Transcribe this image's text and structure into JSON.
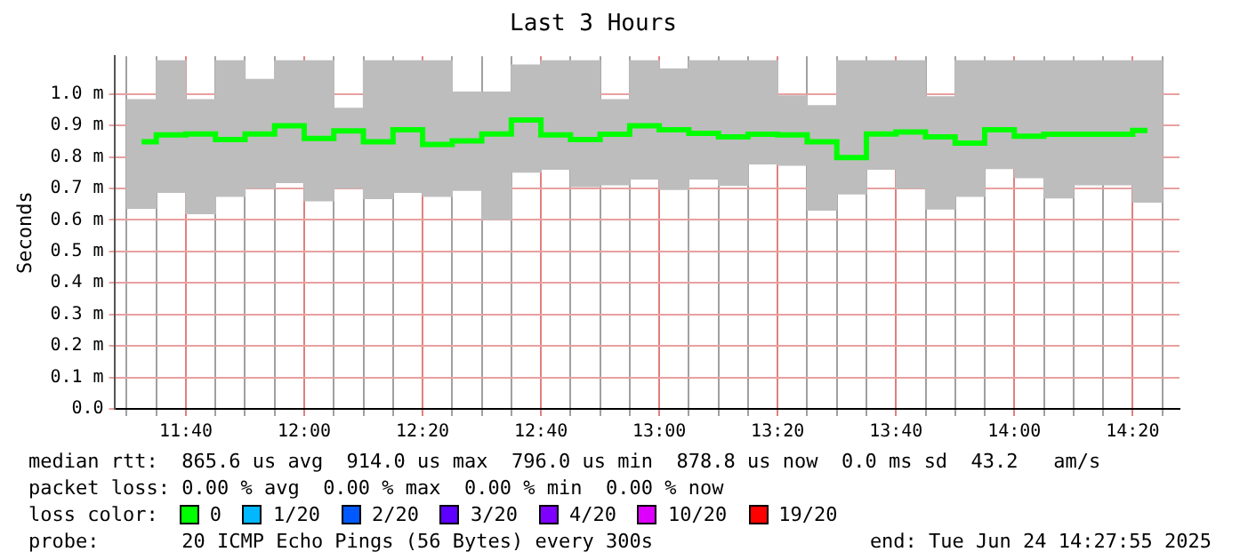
{
  "chart_data": {
    "type": "step",
    "title": "Last 3 Hours",
    "ylabel": "Seconds",
    "legend_title": "loss color:",
    "legend": "bottom",
    "grid": true,
    "x": [
      11.5417,
      11.625,
      11.7083,
      11.7917,
      11.875,
      11.9583,
      12.0417,
      12.125,
      12.2083,
      12.2917,
      12.375,
      12.4583,
      12.5417,
      12.625,
      12.7083,
      12.7917,
      12.875,
      12.9583,
      13.0417,
      13.125,
      13.2083,
      13.2917,
      13.375,
      13.4583,
      13.5417,
      13.625,
      13.7083,
      13.7917,
      13.875,
      13.9583,
      14.0417,
      14.125,
      14.2083,
      14.2917,
      14.375
    ],
    "xlim": [
      11.4653,
      14.4653
    ],
    "xticks": [
      {
        "value": 11.5,
        "label": null
      },
      {
        "value": 11.5833,
        "label": null
      },
      {
        "value": 11.6667,
        "label": "11:40"
      },
      {
        "value": 11.75,
        "label": null
      },
      {
        "value": 11.8333,
        "label": null
      },
      {
        "value": 11.9167,
        "label": null
      },
      {
        "value": 12,
        "label": "12:00"
      },
      {
        "value": 12.0833,
        "label": null
      },
      {
        "value": 12.1667,
        "label": null
      },
      {
        "value": 12.25,
        "label": null
      },
      {
        "value": 12.3333,
        "label": "12:20"
      },
      {
        "value": 12.4167,
        "label": null
      },
      {
        "value": 12.5,
        "label": null
      },
      {
        "value": 12.5833,
        "label": null
      },
      {
        "value": 12.6667,
        "label": "12:40"
      },
      {
        "value": 12.75,
        "label": null
      },
      {
        "value": 12.8333,
        "label": null
      },
      {
        "value": 12.9167,
        "label": null
      },
      {
        "value": 13,
        "label": "13:00"
      },
      {
        "value": 13.0833,
        "label": null
      },
      {
        "value": 13.1667,
        "label": null
      },
      {
        "value": 13.25,
        "label": null
      },
      {
        "value": 13.3333,
        "label": "13:20"
      },
      {
        "value": 13.4167,
        "label": null
      },
      {
        "value": 13.5,
        "label": null
      },
      {
        "value": 13.5833,
        "label": null
      },
      {
        "value": 13.6667,
        "label": "13:40"
      },
      {
        "value": 13.75,
        "label": null
      },
      {
        "value": 13.8333,
        "label": null
      },
      {
        "value": 13.9167,
        "label": null
      },
      {
        "value": 14,
        "label": "14:00"
      },
      {
        "value": 14.0833,
        "label": null
      },
      {
        "value": 14.1667,
        "label": null
      },
      {
        "value": 14.25,
        "label": null
      },
      {
        "value": 14.3333,
        "label": "14:20"
      },
      {
        "value": 14.4167,
        "label": null
      }
    ],
    "ylim": [
      0,
      1.12
    ],
    "yticks": [
      {
        "value": 0,
        "label": "0.0"
      },
      {
        "value": 0.1,
        "label": "0.1 m"
      },
      {
        "value": 0.2,
        "label": "0.2 m"
      },
      {
        "value": 0.3,
        "label": "0.3 m"
      },
      {
        "value": 0.4,
        "label": "0.4 m"
      },
      {
        "value": 0.5,
        "label": "0.5 m"
      },
      {
        "value": 0.6,
        "label": "0.6 m"
      },
      {
        "value": 0.7,
        "label": "0.7 m"
      },
      {
        "value": 0.8,
        "label": "0.8 m"
      },
      {
        "value": 0.9,
        "label": "0.9 m"
      },
      {
        "value": 1.0,
        "label": "1.0 m"
      }
    ],
    "series": [
      {
        "type": "bar",
        "color": "#bdbdbd",
        "base": [
          0.637,
          0.688,
          0.62,
          0.675,
          0.701,
          0.719,
          0.661,
          0.701,
          0.668,
          0.688,
          0.675,
          0.694,
          0.602,
          0.752,
          0.761,
          0.706,
          0.712,
          0.73,
          0.697,
          0.73,
          0.71,
          0.778,
          0.774,
          0.631,
          0.683,
          0.761,
          0.701,
          0.635,
          0.675,
          0.763,
          0.734,
          0.67,
          0.712,
          0.712,
          0.657
        ],
        "values": [
          0.345,
          0.417,
          0.362,
          0.43,
          0.345,
          0.386,
          0.444,
          0.253,
          0.437,
          0.417,
          0.43,
          0.312,
          0.404,
          0.34,
          0.344,
          0.399,
          0.27,
          0.375,
          0.382,
          0.375,
          0.395,
          0.327,
          0.22,
          0.332,
          0.422,
          0.344,
          0.404,
          0.356,
          0.43,
          0.342,
          0.371,
          0.435,
          0.393,
          0.393,
          0.448
        ]
      },
      {
        "name": "0",
        "color": "#00ff00",
        "values": [
          0.848,
          0.87,
          0.873,
          0.855,
          0.873,
          0.899,
          0.859,
          0.883,
          0.848,
          0.886,
          0.84,
          0.851,
          0.873,
          0.917,
          0.87,
          0.855,
          0.872,
          0.899,
          0.886,
          0.875,
          0.864,
          0.872,
          0.87,
          0.848,
          0.798,
          0.873,
          0.879,
          0.864,
          0.844,
          0.886,
          0.866,
          0.872,
          0.872,
          0.872,
          0.884
        ]
      },
      {
        "name": "1/20",
        "color": "#00b8ff",
        "values": [
          null,
          null,
          null,
          null,
          null,
          null,
          null,
          null,
          null,
          null,
          null,
          null,
          null,
          null,
          null,
          null,
          null,
          null,
          null,
          null,
          null,
          null,
          null,
          null,
          null,
          null,
          null,
          null,
          null,
          null,
          null,
          null,
          null,
          null,
          null
        ]
      },
      {
        "name": "2/20",
        "color": "#0059ff",
        "values": [
          null,
          null,
          null,
          null,
          null,
          null,
          null,
          null,
          null,
          null,
          null,
          null,
          null,
          null,
          null,
          null,
          null,
          null,
          null,
          null,
          null,
          null,
          null,
          null,
          null,
          null,
          null,
          null,
          null,
          null,
          null,
          null,
          null,
          null,
          null
        ]
      },
      {
        "name": "3/20",
        "color": "#5e00ff",
        "values": [
          null,
          null,
          null,
          null,
          null,
          null,
          null,
          null,
          null,
          null,
          null,
          null,
          null,
          null,
          null,
          null,
          null,
          null,
          null,
          null,
          null,
          null,
          null,
          null,
          null,
          null,
          null,
          null,
          null,
          null,
          null,
          null,
          null,
          null,
          null
        ]
      },
      {
        "name": "4/20",
        "color": "#7e00ff",
        "values": [
          null,
          null,
          null,
          null,
          null,
          null,
          null,
          null,
          null,
          null,
          null,
          null,
          null,
          null,
          null,
          null,
          null,
          null,
          null,
          null,
          null,
          null,
          null,
          null,
          null,
          null,
          null,
          null,
          null,
          null,
          null,
          null,
          null,
          null,
          null
        ]
      },
      {
        "name": "10/20",
        "color": "#dd00ff",
        "values": [
          null,
          null,
          null,
          null,
          null,
          null,
          null,
          null,
          null,
          null,
          null,
          null,
          null,
          null,
          null,
          null,
          null,
          null,
          null,
          null,
          null,
          null,
          null,
          null,
          null,
          null,
          null,
          null,
          null,
          null,
          null,
          null,
          null,
          null,
          null
        ]
      },
      {
        "name": "19/20",
        "color": "#ff0000",
        "values": [
          null,
          null,
          null,
          null,
          null,
          null,
          null,
          null,
          null,
          null,
          null,
          null,
          null,
          null,
          null,
          null,
          null,
          null,
          null,
          null,
          null,
          null,
          null,
          null,
          null,
          null,
          null,
          null,
          null,
          null,
          null,
          null,
          null,
          null,
          null
        ]
      }
    ],
    "annotations": [
      "median rtt:  865.6 us avg  914.0 us max  796.0 us min  878.8 us now  0.0 ms sd  43.2   am/s",
      "packet loss: 0.00 % avg  0.00 % max  0.00 % min  0.00 % now",
      "probe:       20 ICMP Echo Pings (56 Bytes) every 300s",
      "end: Tue Jun 24 14:27:55 2025"
    ]
  }
}
